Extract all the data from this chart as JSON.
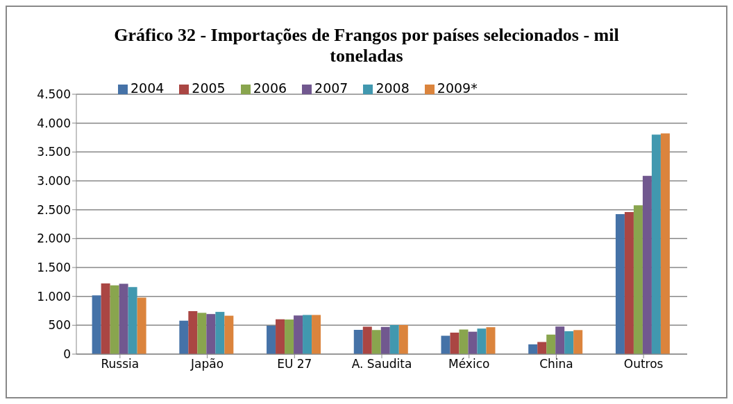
{
  "chart_data": {
    "type": "bar",
    "title": "Gráfico 32 - Importações de Frangos por países selecionados - mil toneladas",
    "categories": [
      "Russia",
      "Japão",
      "EU 27",
      "A. Saudita",
      "México",
      "China",
      "Outros"
    ],
    "series": [
      {
        "name": "2004",
        "color": "#4572a7",
        "values": [
          1017,
          579,
          492,
          421,
          318,
          169,
          2424
        ]
      },
      {
        "name": "2005",
        "color": "#aa4643",
        "values": [
          1223,
          744,
          603,
          475,
          372,
          210,
          2461
        ]
      },
      {
        "name": "2006",
        "color": "#89a54e",
        "values": [
          1190,
          715,
          599,
          417,
          426,
          338,
          2576
        ]
      },
      {
        "name": "2007",
        "color": "#71588f",
        "values": [
          1219,
          694,
          669,
          471,
          388,
          478,
          3088
        ]
      },
      {
        "name": "2008",
        "color": "#4198af",
        "values": [
          1161,
          731,
          678,
          504,
          442,
          396,
          3801
        ]
      },
      {
        "name": "2009*",
        "color": "#db843d",
        "values": [
          979,
          665,
          678,
          504,
          466,
          416,
          3821
        ]
      }
    ],
    "ylim": [
      0,
      4500
    ],
    "yticks": [
      {
        "value": 0,
        "label": "0"
      },
      {
        "value": 500,
        "label": "500"
      },
      {
        "value": 1000,
        "label": "1.000"
      },
      {
        "value": 1500,
        "label": "1.500"
      },
      {
        "value": 2000,
        "label": "2.000"
      },
      {
        "value": 2500,
        "label": "2.500"
      },
      {
        "value": 3000,
        "label": "3.000"
      },
      {
        "value": 3500,
        "label": "3.500"
      },
      {
        "value": 4000,
        "label": "4.000"
      },
      {
        "value": 4500,
        "label": "4.500"
      }
    ],
    "grid": "y",
    "legend": "top left"
  }
}
